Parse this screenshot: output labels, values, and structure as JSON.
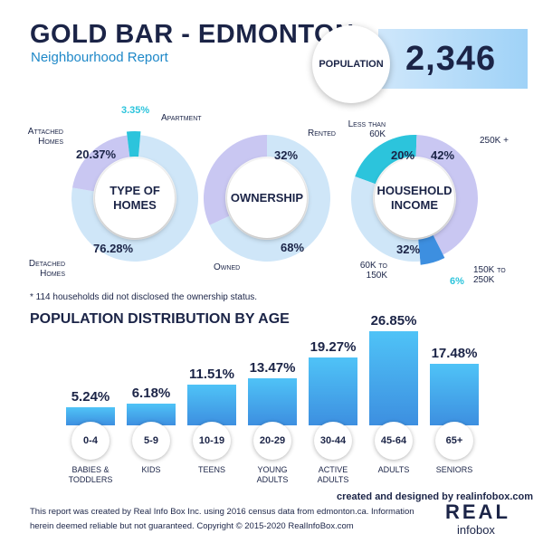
{
  "header": {
    "title": "GOLD BAR - EDMONTON",
    "subtitle": "Neighbourhood Report"
  },
  "population": {
    "label": "POPULATION",
    "value": "2,346"
  },
  "colors": {
    "navy": "#1b2447",
    "light_blue": "#cfe6f8",
    "lavender": "#c9c7f2",
    "teal": "#2cc4dc",
    "mid_blue": "#3d8fe0",
    "bar_top": "#4fc3f7"
  },
  "chart_data": [
    {
      "type": "pie",
      "title": "TYPE OF HOMES",
      "slices": [
        {
          "label": "Detached Homes",
          "value": 76.28,
          "value_label": "76.28%"
        },
        {
          "label": "Attached Homes",
          "value": 20.37,
          "value_label": "20.37%"
        },
        {
          "label": "Apartment",
          "value": 3.35,
          "value_label": "3.35%"
        }
      ]
    },
    {
      "type": "pie",
      "title": "OWNERSHIP",
      "slices": [
        {
          "label": "Owned",
          "value": 68,
          "value_label": "68%"
        },
        {
          "label": "Rented",
          "value": 32,
          "value_label": "32%"
        }
      ],
      "note": "* 114 households did not disclosed the ownership status."
    },
    {
      "type": "pie",
      "title": "HOUSEHOLD INCOME",
      "slices": [
        {
          "label": "Less than 60K",
          "value": 20,
          "value_label": "20%"
        },
        {
          "label": "250K +",
          "value": 42,
          "value_label": "42%"
        },
        {
          "label": "150K to 250K",
          "value": 6,
          "value_label": "6%"
        },
        {
          "label": "60K to 150K",
          "value": 32,
          "value_label": "32%"
        }
      ]
    },
    {
      "type": "bar",
      "title": "POPULATION DISTRIBUTION BY AGE",
      "categories": [
        "0-4",
        "5-9",
        "10-19",
        "20-29",
        "30-44",
        "45-64",
        "65+"
      ],
      "category_names": [
        "BABIES &\nTODDLERS",
        "KIDS",
        "TEENS",
        "YOUNG\nADULTS",
        "ACTIVE\nADULTS",
        "ADULTS",
        "SENIORS"
      ],
      "values": [
        5.24,
        6.18,
        11.51,
        13.47,
        19.27,
        26.85,
        17.48
      ],
      "value_labels": [
        "5.24%",
        "6.18%",
        "11.51%",
        "13.47%",
        "19.27%",
        "26.85%",
        "17.48%"
      ],
      "ylim": [
        0,
        26.85
      ]
    }
  ],
  "footer": {
    "credit": "created and designed by realinfobox.com",
    "disclaimer_line1": "This report was created by Real Info Box Inc. using 2016 census data from edmonton.ca. Information",
    "disclaimer_line2": "herein deemed reliable but not guaranteed. Copyright © 2015-2020 RealInfoBox.com",
    "logo_top": "REAL",
    "logo_bottom": "infobox"
  }
}
